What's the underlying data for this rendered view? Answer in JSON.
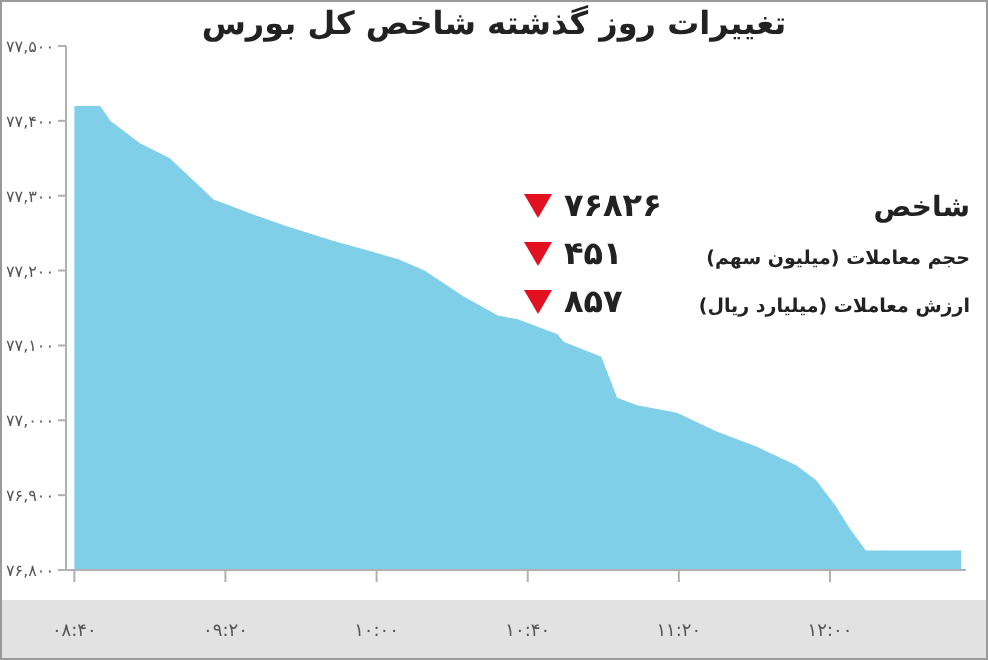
{
  "chart_data": {
    "type": "area",
    "title": "تغییرات روز گذشته شاخص کل بورس",
    "x": [
      8.667,
      8.781,
      8.825,
      8.956,
      9.088,
      9.281,
      9.456,
      9.597,
      9.807,
      9.982,
      10.096,
      10.211,
      10.386,
      10.535,
      10.623,
      10.798,
      10.825,
      10.991,
      11.061,
      11.149,
      11.325,
      11.5,
      11.675,
      11.851,
      11.939,
      12.026,
      12.088,
      12.158,
      12.579
    ],
    "values": [
      77420,
      77420,
      77400,
      77370,
      77350,
      77295,
      77275,
      77260,
      77240,
      77225,
      77215,
      77200,
      77165,
      77140,
      77135,
      77115,
      77105,
      77085,
      77030,
      77020,
      77010,
      76985,
      76965,
      76940,
      76920,
      76885,
      76855,
      76826,
      76826
    ],
    "color": "#7fcfe8",
    "xlim": [
      8.63,
      12.6
    ],
    "xticks": [
      {
        "value": 8.6667,
        "label": "۰۸:۴۰"
      },
      {
        "value": 9.3333,
        "label": "۰۹:۲۰"
      },
      {
        "value": 10,
        "label": "۱۰:۰۰"
      },
      {
        "value": 10.6667,
        "label": "۱۰:۴۰"
      },
      {
        "value": 11.3333,
        "label": "۱۱:۲۰"
      },
      {
        "value": 12,
        "label": "۱۲:۰۰"
      }
    ],
    "ylim": [
      76800,
      77500
    ],
    "yticks": [
      {
        "value": 76800,
        "label": "۷۶,۸۰۰"
      },
      {
        "value": 76900,
        "label": "۷۶,۹۰۰"
      },
      {
        "value": 77000,
        "label": "۷۷,۰۰۰"
      },
      {
        "value": 77100,
        "label": "۷۷,۱۰۰"
      },
      {
        "value": 77200,
        "label": "۷۷,۲۰۰"
      },
      {
        "value": 77300,
        "label": "۷۷,۳۰۰"
      },
      {
        "value": 77400,
        "label": "۷۷,۴۰۰"
      },
      {
        "value": 77500,
        "label": "۷۷,۵۰۰"
      }
    ],
    "annotations": [
      "شاخص",
      "۷۶۸۲۶",
      "حجم معاملات (میلیون سهم)",
      "۴۵۱",
      "ارزش معاملات (میلیارد ریال)",
      "۸۵۷"
    ]
  }
}
